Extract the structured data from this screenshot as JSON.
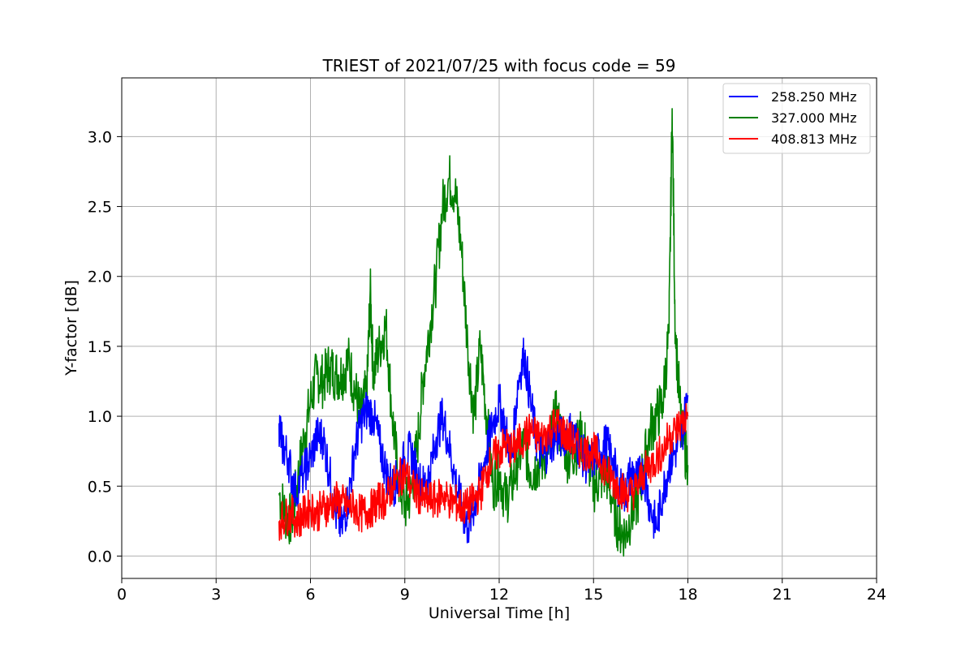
{
  "chart_data": {
    "type": "line",
    "title": "TRIEST of 2021/07/25 with focus code = 59",
    "xlabel": "Universal Time [h]",
    "ylabel": "Y-factor [dB]",
    "xlim": [
      0,
      24
    ],
    "ylim": [
      -0.16,
      3.42
    ],
    "xticks": [
      0,
      3,
      6,
      9,
      12,
      15,
      18,
      21,
      24
    ],
    "yticks": [
      "0.0",
      "0.5",
      "1.0",
      "1.5",
      "2.0",
      "2.5",
      "3.0"
    ],
    "grid": true,
    "legend_position": "top-right",
    "series": [
      {
        "name": "258.250 MHz",
        "color": "#0000ff",
        "x": [
          5.0,
          5.1,
          5.3,
          5.5,
          5.8,
          6.0,
          6.2,
          6.4,
          6.6,
          6.8,
          7.0,
          7.2,
          7.4,
          7.6,
          7.8,
          8.0,
          8.2,
          8.4,
          8.6,
          8.8,
          9.0,
          9.2,
          9.4,
          9.6,
          9.8,
          10.0,
          10.2,
          10.4,
          10.6,
          10.8,
          11.0,
          11.2,
          11.4,
          11.6,
          11.8,
          12.0,
          12.2,
          12.4,
          12.6,
          12.8,
          13.0,
          13.2,
          13.4,
          13.6,
          13.8,
          14.0,
          14.2,
          14.4,
          14.6,
          14.8,
          15.0,
          15.2,
          15.4,
          15.6,
          15.8,
          16.0,
          16.2,
          16.4,
          16.6,
          16.8,
          17.0,
          17.2,
          17.4,
          17.6,
          17.8,
          18.0
        ],
        "y": [
          0.95,
          0.8,
          0.7,
          0.45,
          0.6,
          0.7,
          0.85,
          0.85,
          0.6,
          0.3,
          0.2,
          0.4,
          0.75,
          0.95,
          1.05,
          1.0,
          0.8,
          0.6,
          0.5,
          0.55,
          0.7,
          0.75,
          0.55,
          0.5,
          0.6,
          0.85,
          1.0,
          0.8,
          0.55,
          0.35,
          0.2,
          0.35,
          0.55,
          0.75,
          0.95,
          1.1,
          0.9,
          0.7,
          1.25,
          1.45,
          1.1,
          0.8,
          0.7,
          0.8,
          0.85,
          0.85,
          0.9,
          0.85,
          0.75,
          0.65,
          0.7,
          0.75,
          0.8,
          0.7,
          0.5,
          0.45,
          0.6,
          0.55,
          0.6,
          0.35,
          0.2,
          0.45,
          0.65,
          0.75,
          0.85,
          1.15
        ]
      },
      {
        "name": "327.000 MHz",
        "color": "#008000",
        "x": [
          5.0,
          5.2,
          5.4,
          5.6,
          5.8,
          6.0,
          6.2,
          6.4,
          6.6,
          6.8,
          7.0,
          7.2,
          7.4,
          7.6,
          7.8,
          7.9,
          8.0,
          8.2,
          8.4,
          8.6,
          8.8,
          9.0,
          9.2,
          9.4,
          9.6,
          9.8,
          10.0,
          10.2,
          10.4,
          10.6,
          10.8,
          11.0,
          11.2,
          11.4,
          11.6,
          11.8,
          12.0,
          12.2,
          12.4,
          12.6,
          12.8,
          13.0,
          13.2,
          13.4,
          13.6,
          13.8,
          14.0,
          14.2,
          14.4,
          14.6,
          14.8,
          15.0,
          15.2,
          15.4,
          15.6,
          15.8,
          16.0,
          16.2,
          16.4,
          16.6,
          16.8,
          17.0,
          17.2,
          17.4,
          17.5,
          17.6,
          17.8,
          18.0
        ],
        "y": [
          0.45,
          0.3,
          0.25,
          0.55,
          0.85,
          1.1,
          1.3,
          1.25,
          1.35,
          1.3,
          1.3,
          1.4,
          1.2,
          1.0,
          1.2,
          1.9,
          1.3,
          1.5,
          1.65,
          1.0,
          0.55,
          0.35,
          0.45,
          0.8,
          1.3,
          1.65,
          2.0,
          2.5,
          2.7,
          2.6,
          2.2,
          1.5,
          1.0,
          1.5,
          1.0,
          0.5,
          0.6,
          0.4,
          0.5,
          0.7,
          0.8,
          0.6,
          0.65,
          0.7,
          0.8,
          1.0,
          0.85,
          0.7,
          0.75,
          0.85,
          0.75,
          0.5,
          0.55,
          0.6,
          0.4,
          0.2,
          0.15,
          0.3,
          0.4,
          0.65,
          0.9,
          1.0,
          1.1,
          1.6,
          3.2,
          1.6,
          0.9,
          0.65
        ]
      },
      {
        "name": "408.813 MHz",
        "color": "#ff0000",
        "x": [
          5.0,
          5.2,
          5.4,
          5.6,
          5.8,
          6.0,
          6.2,
          6.4,
          6.6,
          6.8,
          7.0,
          7.2,
          7.4,
          7.6,
          7.8,
          8.0,
          8.2,
          8.4,
          8.6,
          8.8,
          9.0,
          9.2,
          9.4,
          9.6,
          9.8,
          10.0,
          10.2,
          10.4,
          10.6,
          10.8,
          11.0,
          11.2,
          11.4,
          11.6,
          11.8,
          12.0,
          12.2,
          12.4,
          12.6,
          12.8,
          13.0,
          13.2,
          13.4,
          13.6,
          13.8,
          14.0,
          14.2,
          14.4,
          14.6,
          14.8,
          15.0,
          15.2,
          15.4,
          15.6,
          15.8,
          16.0,
          16.2,
          16.4,
          16.6,
          16.8,
          17.0,
          17.2,
          17.4,
          17.6,
          17.8,
          18.0
        ],
        "y": [
          0.25,
          0.28,
          0.3,
          0.25,
          0.3,
          0.35,
          0.3,
          0.35,
          0.35,
          0.4,
          0.38,
          0.35,
          0.35,
          0.3,
          0.32,
          0.35,
          0.4,
          0.4,
          0.5,
          0.55,
          0.6,
          0.5,
          0.45,
          0.4,
          0.4,
          0.4,
          0.45,
          0.4,
          0.38,
          0.35,
          0.35,
          0.4,
          0.45,
          0.6,
          0.7,
          0.75,
          0.8,
          0.75,
          0.8,
          0.85,
          0.9,
          0.85,
          0.85,
          0.9,
          0.95,
          0.9,
          0.85,
          0.8,
          0.75,
          0.75,
          0.75,
          0.7,
          0.6,
          0.55,
          0.5,
          0.45,
          0.45,
          0.5,
          0.6,
          0.65,
          0.7,
          0.75,
          0.85,
          0.9,
          0.95,
          1.0
        ]
      }
    ]
  }
}
